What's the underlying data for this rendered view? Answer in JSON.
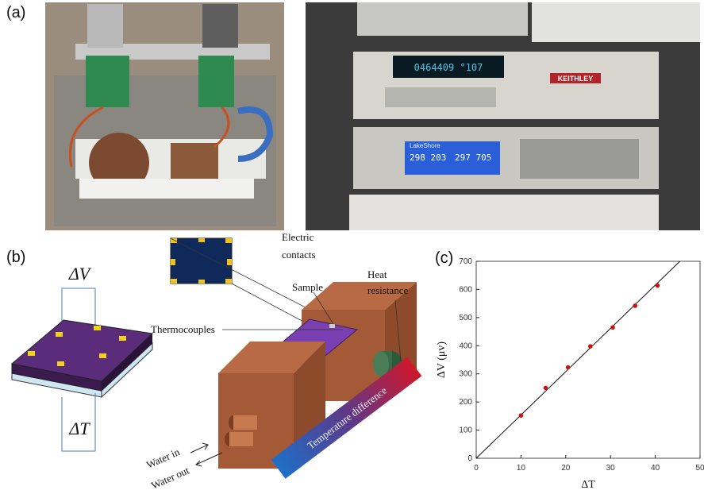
{
  "panels": {
    "a": "(a)",
    "b": "(b)",
    "c": "(c)"
  },
  "photo": {
    "keithley": "KEITHLEY",
    "keithley_display": "0464409 °107",
    "lakeshore": "LakeShore",
    "lakeshore_a": "298 203",
    "lakeshore_b": "297 705"
  },
  "diagram": {
    "delta_v": "ΔV",
    "delta_t": "ΔT",
    "electric_contacts": [
      "Electric",
      "contacts"
    ],
    "sample": "Sample",
    "heat_resistance": [
      "Heat",
      "resistance"
    ],
    "thermocouples": "Thermocouples",
    "water_in": "Water in",
    "water_out": "Water out",
    "temperature_difference": "Temperature difference"
  },
  "chart_data": {
    "type": "scatter",
    "xlabel": "ΔT",
    "ylabel": "ΔV (μv)",
    "x": [
      10,
      15.5,
      20.5,
      25.5,
      30.5,
      35.5,
      40.5
    ],
    "values": [
      152,
      250,
      323,
      398,
      465,
      542,
      614
    ],
    "color": "#cc1111",
    "fit": {
      "x": [
        0,
        45.5
      ],
      "values": [
        0,
        700
      ],
      "color": "#111111"
    },
    "xlim": [
      0,
      50
    ],
    "ylim": [
      0,
      700
    ],
    "xticks": [
      0,
      10,
      20,
      30,
      40,
      50
    ],
    "yticks": [
      0,
      100,
      200,
      300,
      400,
      500,
      600,
      700
    ]
  }
}
